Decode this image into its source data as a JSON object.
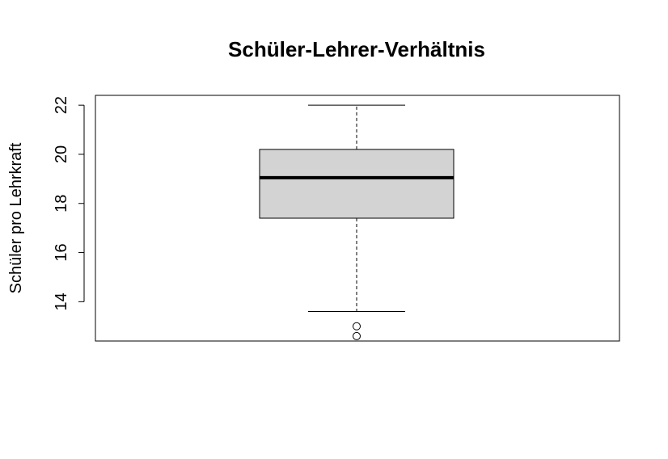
{
  "chart_data": {
    "type": "box",
    "title": "Schüler-Lehrer-Verhältnis",
    "xlabel": "",
    "ylabel": "Schüler pro Lehrkraft",
    "ylim": [
      12.4,
      22.4
    ],
    "yticks": [
      14,
      16,
      18,
      20,
      22
    ],
    "grid": false,
    "box": {
      "lower_whisker": 13.6,
      "q1": 17.4,
      "median": 19.05,
      "q3": 20.2,
      "upper_whisker": 22.0,
      "outliers": [
        13.0,
        12.6
      ]
    },
    "colors": {
      "box_fill": "#d3d3d3",
      "stroke": "#000000"
    }
  }
}
